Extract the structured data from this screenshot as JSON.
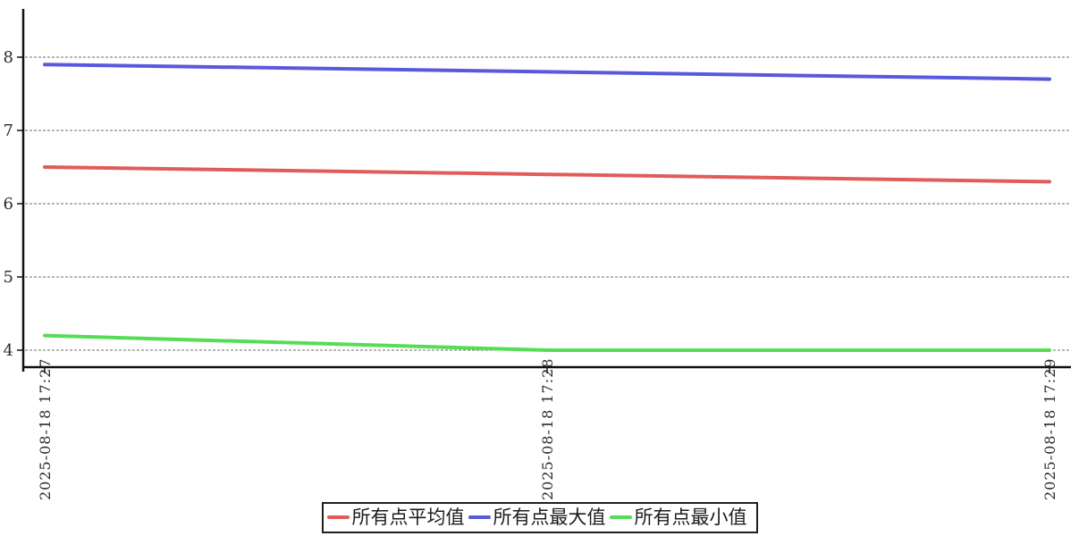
{
  "chart_data": {
    "type": "line",
    "title": "",
    "xlabel": "",
    "ylabel": "",
    "x": [
      "2025-08-18 17:27",
      "2025-08-18 17:28",
      "2025-08-18 17:29"
    ],
    "series": [
      {
        "name": "所有点平均值",
        "color": "#e05c5c",
        "values": [
          6.5,
          6.4,
          6.3
        ]
      },
      {
        "name": "所有点最大值",
        "color": "#5959dd",
        "values": [
          7.9,
          7.8,
          7.7
        ]
      },
      {
        "name": "所有点最小值",
        "color": "#55dd55",
        "values": [
          4.2,
          4.0,
          4.0
        ]
      }
    ],
    "yticks": [
      4,
      5,
      6,
      7,
      8
    ],
    "ylim": [
      3.8,
      8.65
    ],
    "grid": true,
    "gridline_color": "#6e6e6e",
    "axis_color": "#111111",
    "legend_position": "bottom-center",
    "legend_border": true
  }
}
